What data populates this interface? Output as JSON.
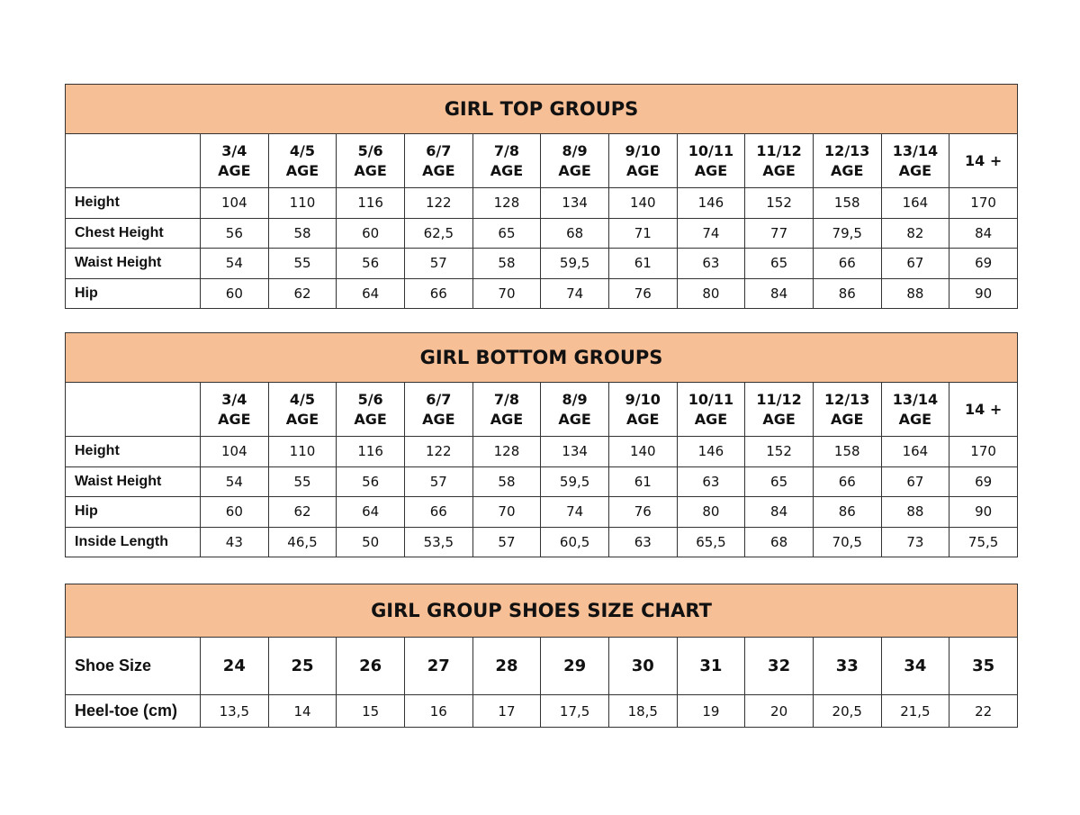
{
  "tables": [
    {
      "title": "GIRL TOP GROUPS",
      "columns": [
        "3/4\nAGE",
        "4/5\nAGE",
        "5/6\nAGE",
        "6/7\nAGE",
        "7/8\nAGE",
        "8/9\nAGE",
        "9/10\nAGE",
        "10/11\nAGE",
        "11/12\nAGE",
        "12/13\nAGE",
        "13/14\nAGE",
        "14 +"
      ],
      "rows": [
        {
          "label": "Height",
          "values": [
            "104",
            "110",
            "116",
            "122",
            "128",
            "134",
            "140",
            "146",
            "152",
            "158",
            "164",
            "170"
          ]
        },
        {
          "label": "Chest Height",
          "values": [
            "56",
            "58",
            "60",
            "62,5",
            "65",
            "68",
            "71",
            "74",
            "77",
            "79,5",
            "82",
            "84"
          ]
        },
        {
          "label": "Waist Height",
          "values": [
            "54",
            "55",
            "56",
            "57",
            "58",
            "59,5",
            "61",
            "63",
            "65",
            "66",
            "67",
            "69"
          ]
        },
        {
          "label": "Hip",
          "values": [
            "60",
            "62",
            "64",
            "66",
            "70",
            "74",
            "76",
            "80",
            "84",
            "86",
            "88",
            "90"
          ]
        }
      ]
    },
    {
      "title": "GIRL BOTTOM GROUPS",
      "columns": [
        "3/4\nAGE",
        "4/5\nAGE",
        "5/6\nAGE",
        "6/7\nAGE",
        "7/8\nAGE",
        "8/9\nAGE",
        "9/10\nAGE",
        "10/11\nAGE",
        "11/12\nAGE",
        "12/13\nAGE",
        "13/14\nAGE",
        "14 +"
      ],
      "rows": [
        {
          "label": "Height",
          "values": [
            "104",
            "110",
            "116",
            "122",
            "128",
            "134",
            "140",
            "146",
            "152",
            "158",
            "164",
            "170"
          ]
        },
        {
          "label": "Waist Height",
          "values": [
            "54",
            "55",
            "56",
            "57",
            "58",
            "59,5",
            "61",
            "63",
            "65",
            "66",
            "67",
            "69"
          ]
        },
        {
          "label": "Hip",
          "values": [
            "60",
            "62",
            "64",
            "66",
            "70",
            "74",
            "76",
            "80",
            "84",
            "86",
            "88",
            "90"
          ]
        },
        {
          "label": "Inside Length",
          "values": [
            "43",
            "46,5",
            "50",
            "53,5",
            "57",
            "60,5",
            "63",
            "65,5",
            "68",
            "70,5",
            "73",
            "75,5"
          ]
        }
      ]
    },
    {
      "title": "GIRL GROUP SHOES SIZE CHART",
      "header_label": "Shoe Size",
      "columns": [
        "24",
        "25",
        "26",
        "27",
        "28",
        "29",
        "30",
        "31",
        "32",
        "33",
        "34",
        "35"
      ],
      "rows": [
        {
          "label": "Heel-toe (cm)",
          "values": [
            "13,5",
            "14",
            "15",
            "16",
            "17",
            "17,5",
            "18,5",
            "19",
            "20",
            "20,5",
            "21,5",
            "22"
          ]
        }
      ]
    }
  ],
  "colors": {
    "header_bg": "#f7bf96",
    "border": "#333333"
  }
}
